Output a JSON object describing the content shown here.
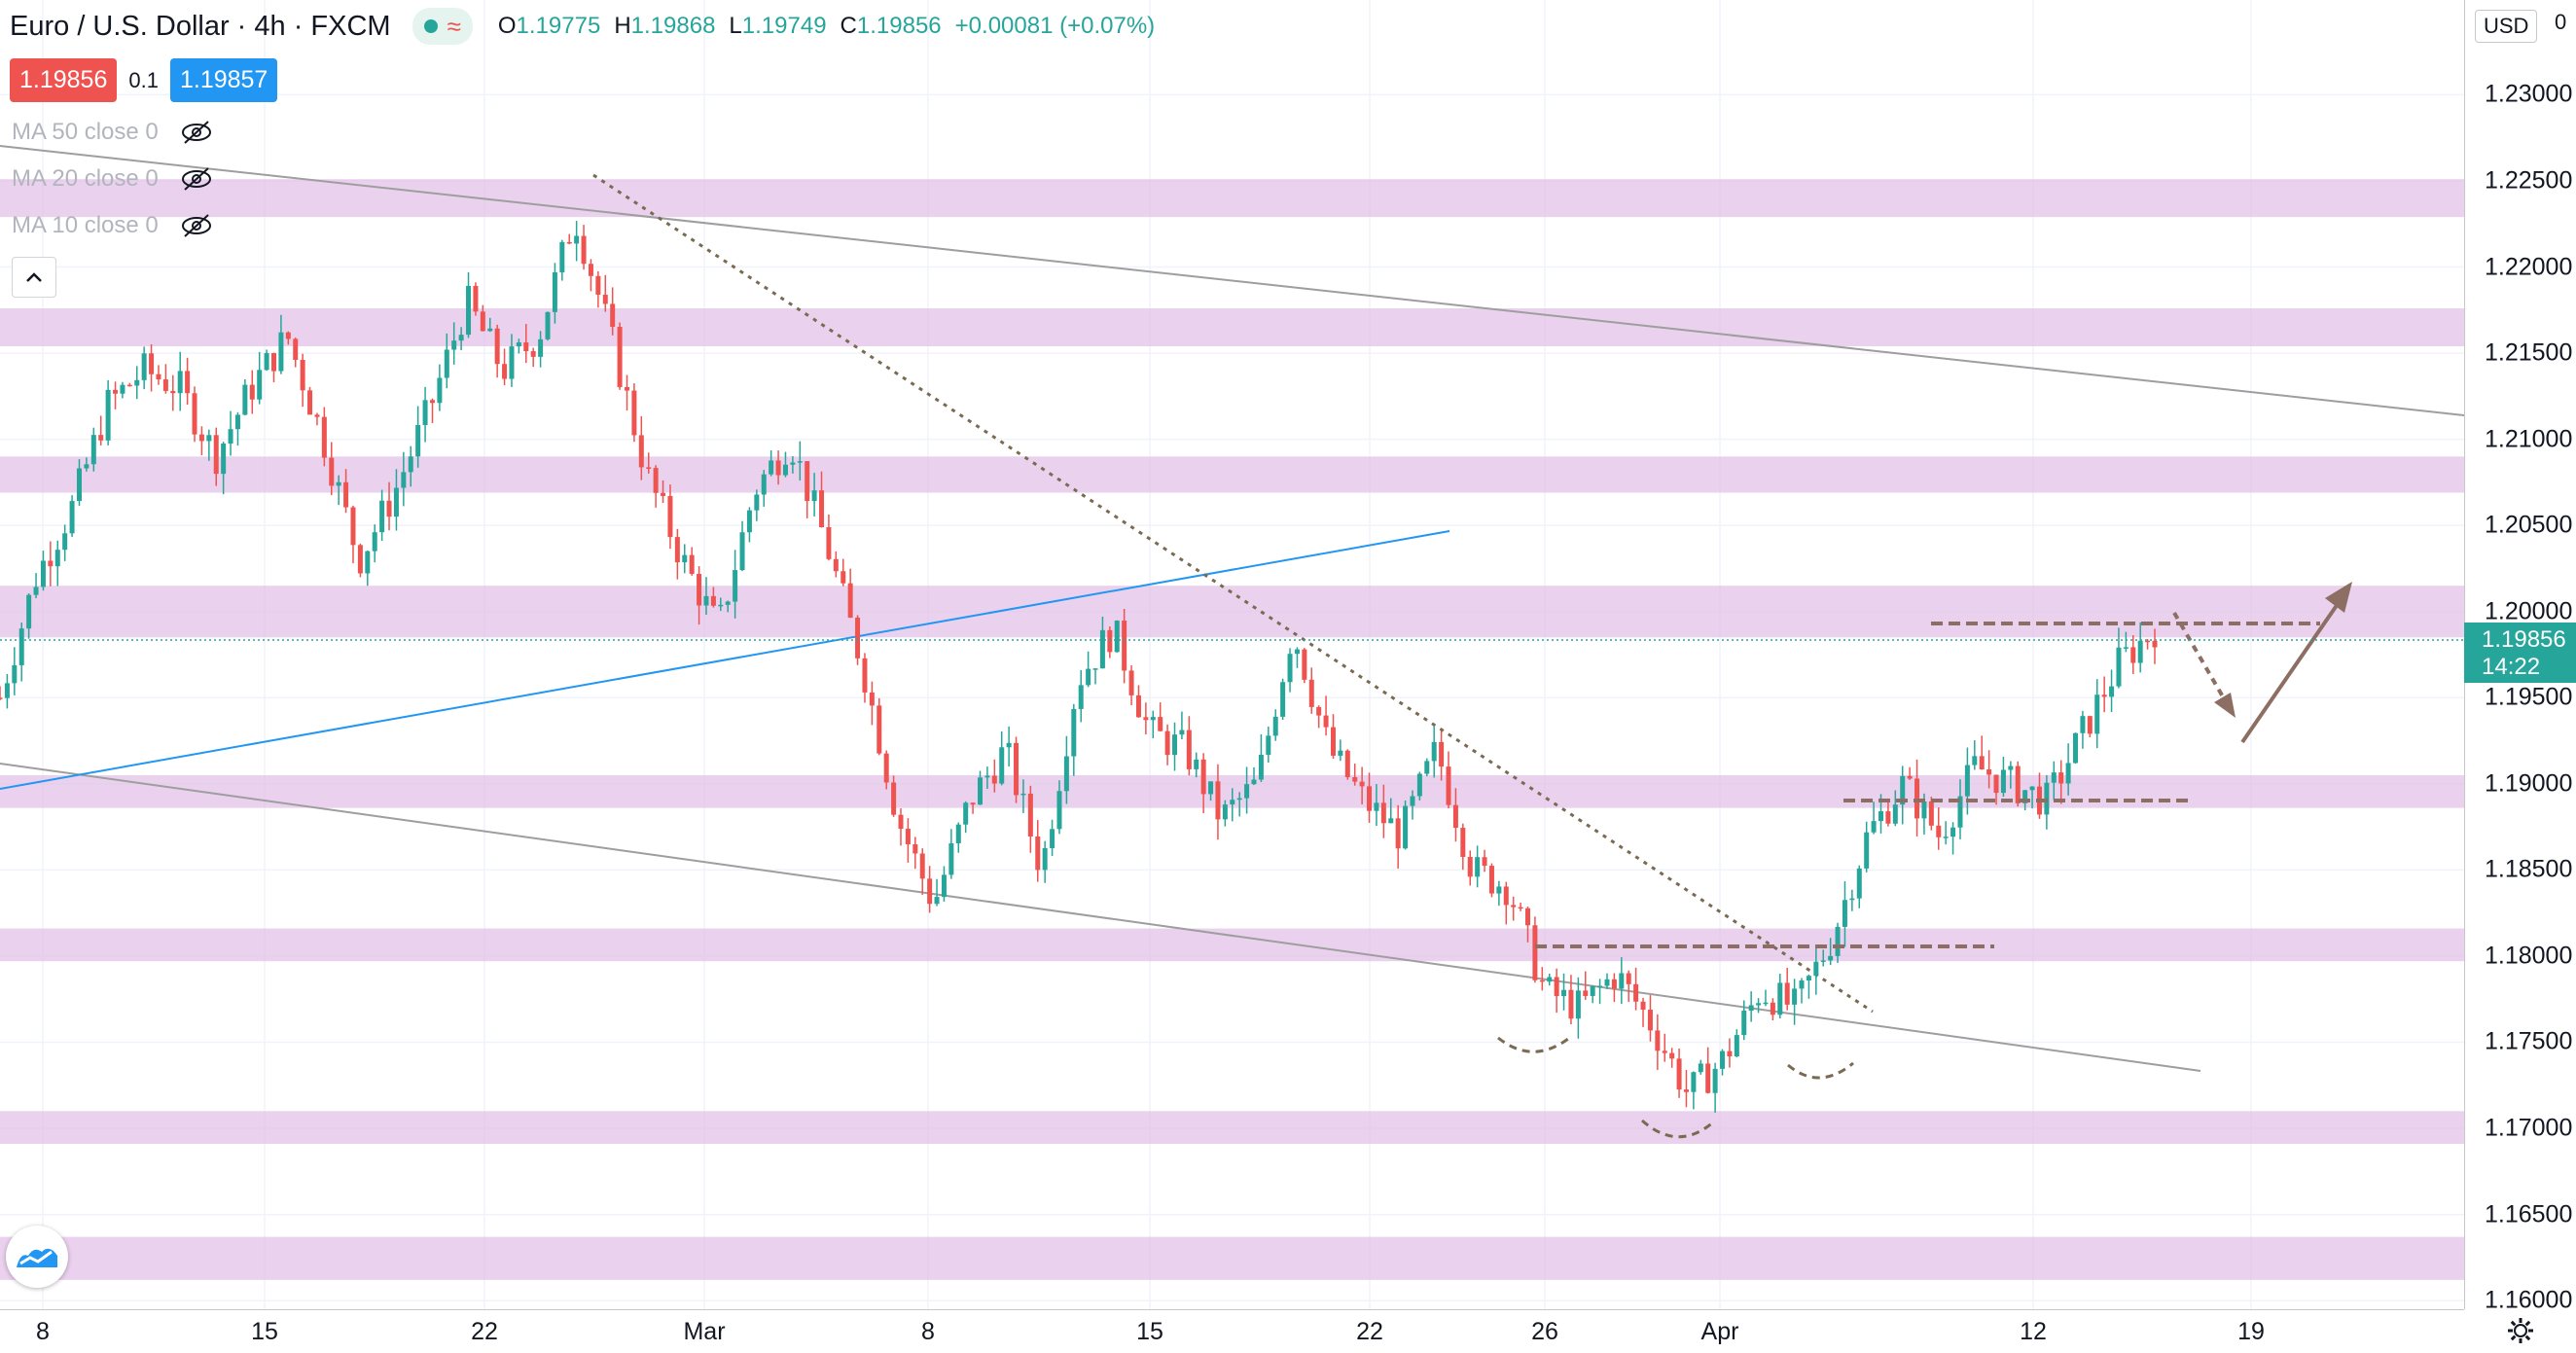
{
  "header": {
    "symbol_title": "Euro / U.S. Dollar · 4h · FXCM",
    "ohlc": {
      "o_label": "O",
      "o": "1.19775",
      "h_label": "H",
      "h": "1.19868",
      "l_label": "L",
      "l": "1.19749",
      "c_label": "C",
      "c": "1.19856",
      "change": "+0.00081 (+0.07%)"
    },
    "status_icon": "market-open-dot-icon",
    "wave_icon": "replay-wave-icon"
  },
  "quote": {
    "sell_price": "1.19856",
    "spread": "0.1",
    "buy_price": "1.19857"
  },
  "indicators": [
    {
      "label": "MA 50 close 0",
      "icon": "eye-off-icon"
    },
    {
      "label": "MA 20 close 0",
      "icon": "eye-off-icon"
    },
    {
      "label": "MA 10 close 0",
      "icon": "eye-off-icon"
    }
  ],
  "price_axis": {
    "currency": "USD",
    "top_partial": "0",
    "ticks": [
      "1.23000",
      "1.22500",
      "1.22000",
      "1.21500",
      "1.21000",
      "1.20500",
      "1.20000",
      "1.19500",
      "1.19000",
      "1.18500",
      "1.18000",
      "1.17500",
      "1.17000",
      "1.16500",
      "1.16000"
    ],
    "last_price": "1.19856",
    "countdown": "14:22"
  },
  "time_axis": {
    "ticks": [
      "8",
      "15",
      "22",
      "Mar",
      "8",
      "15",
      "22",
      "26",
      "Apr",
      "12",
      "19"
    ]
  },
  "colors": {
    "bull": "#26a69a",
    "bear": "#ef5350",
    "zone": "#e1bee7",
    "trendline": "#9e9e9e",
    "blue_line": "#2196f3",
    "annotation": "#8d6e63"
  },
  "chart_data": {
    "type": "candlestick",
    "symbol": "EUR/USD",
    "timeframe": "4h",
    "ylim": [
      1.1595,
      1.2355
    ],
    "support_resistance_zones": [
      [
        1.2229,
        1.2251
      ],
      [
        1.2154,
        1.2176
      ],
      [
        1.2069,
        1.209
      ],
      [
        1.1985,
        1.2015
      ],
      [
        1.1886,
        1.1905
      ],
      [
        1.1797,
        1.1816
      ],
      [
        1.1691,
        1.171
      ],
      [
        1.1612,
        1.1637
      ]
    ],
    "price_path": [
      1.195,
      1.202,
      1.206,
      1.212,
      1.214,
      1.213,
      1.209,
      1.213,
      1.216,
      1.21,
      1.203,
      1.207,
      1.212,
      1.218,
      1.214,
      1.216,
      1.223,
      1.216,
      1.208,
      1.203,
      1.199,
      1.207,
      1.21,
      1.204,
      1.197,
      1.188,
      1.183,
      1.189,
      1.192,
      1.185,
      1.196,
      1.199,
      1.193,
      1.192,
      1.188,
      1.19,
      1.199,
      1.192,
      1.189,
      1.187,
      1.192,
      1.185,
      1.184,
      1.178,
      1.177,
      1.179,
      1.176,
      1.172,
      1.174,
      1.178,
      1.177,
      1.181,
      1.187,
      1.19,
      1.187,
      1.191,
      1.19,
      1.189,
      1.193,
      1.197,
      1.199
    ]
  }
}
